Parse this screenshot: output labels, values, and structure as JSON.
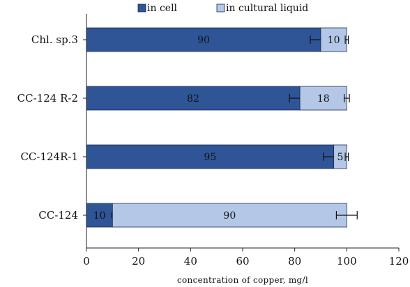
{
  "chart_data": {
    "type": "bar",
    "orientation": "horizontal",
    "stacked": true,
    "title": "",
    "xlabel": "concentration of copper, mg/l",
    "ylabel": "",
    "xlim": [
      0,
      120
    ],
    "x_ticks": [
      0,
      20,
      40,
      60,
      80,
      100,
      120
    ],
    "grid": false,
    "legend_position": "top",
    "categories": [
      "Chl. sp.3",
      "CC-124 R-2",
      "CC-124R-1",
      "CC-124"
    ],
    "series": [
      {
        "name": "in cell",
        "color": "#2f5597",
        "values": [
          90,
          82,
          95,
          10
        ],
        "labels": [
          "90",
          "82",
          "95",
          "10"
        ],
        "error": [
          4,
          4,
          4,
          0
        ]
      },
      {
        "name": "in cultural liquid",
        "color": "#b4c7e7",
        "values": [
          10,
          18,
          5,
          90
        ],
        "labels": [
          "10",
          "18",
          "5",
          "90"
        ],
        "error": [
          0.6,
          1,
          0.6,
          4
        ]
      }
    ]
  }
}
